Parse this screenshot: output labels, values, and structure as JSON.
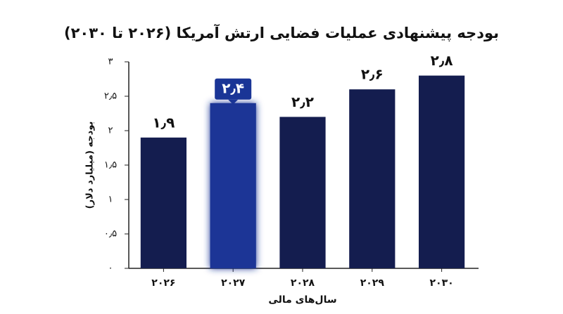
{
  "chart_data": {
    "type": "bar",
    "title": "بودجه پیشنهادی عملیات فضایی ارتش آمریکا (۲۰۲۶ تا ۲۰۳۰)",
    "y_label": "بودجه (میلیارد دلار)",
    "x_label": "سال‌های مالی",
    "categories": [
      "۲۰۲۶",
      "۲۰۲۷",
      "۲۰۲۸",
      "۲۰۲۹",
      "۲۰۳۰"
    ],
    "values": [
      1.9,
      2.4,
      2.2,
      2.6,
      2.8
    ],
    "value_labels": [
      "۱٫۹",
      "۲٫۴",
      "۲٫۲",
      "۲٫۶",
      "۲٫۸"
    ],
    "color": "#141d4f",
    "colors": [
      "#141d4f",
      "#1a3596",
      "#141d4f",
      "#141d4f",
      "#141d4f"
    ],
    "ylim": [
      0,
      3
    ],
    "yticks": [
      {
        "value": 0,
        "label": "۰"
      },
      {
        "value": 0.5,
        "label": "۰٫۵"
      },
      {
        "value": 1,
        "label": "۱"
      },
      {
        "value": 1.5,
        "label": "۱٫۵"
      },
      {
        "value": 2,
        "label": "۲"
      },
      {
        "value": 2.5,
        "label": "۲٫۵"
      },
      {
        "value": 3,
        "label": "۳"
      }
    ],
    "grid": false
  }
}
